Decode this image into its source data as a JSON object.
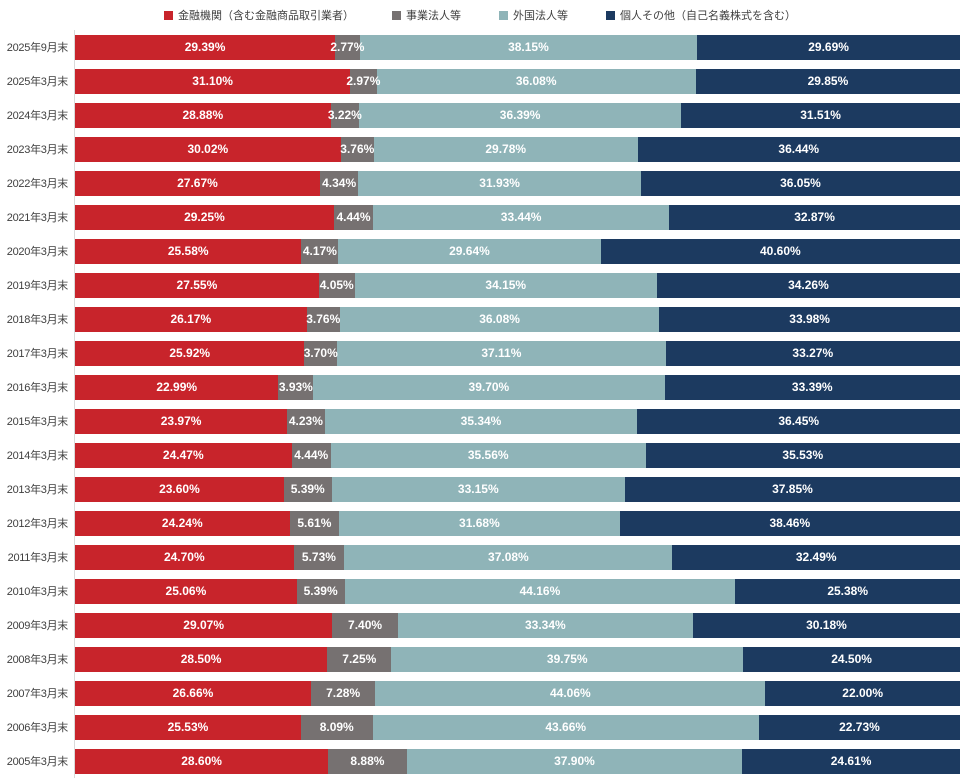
{
  "colors": {
    "financial": "#c8242b",
    "business": "#767171",
    "foreign": "#8fb4b8",
    "individual": "#1c3a60",
    "axis_line": "#d9d9d9",
    "category_text": "#404040",
    "value_text": "#ffffff",
    "background": "#ffffff"
  },
  "chart_data": {
    "type": "bar",
    "orientation": "horizontal",
    "stacked": true,
    "unit": "%",
    "xlim": [
      0,
      100
    ],
    "grid": false,
    "legend_position": "top",
    "value_label_format": "0.00%",
    "categories": [
      "2025年9月末",
      "2025年3月末",
      "2024年3月末",
      "2023年3月末",
      "2022年3月末",
      "2021年3月末",
      "2020年3月末",
      "2019年3月末",
      "2018年3月末",
      "2017年3月末",
      "2016年3月末",
      "2015年3月末",
      "2014年3月末",
      "2013年3月末",
      "2012年3月末",
      "2011年3月末",
      "2010年3月末",
      "2009年3月末",
      "2008年3月末",
      "2007年3月末",
      "2006年3月末",
      "2005年3月末"
    ],
    "series": [
      {
        "key": "financial-institutions",
        "name": "金融機関（含む金融商品取引業者）",
        "color": "#c8242b",
        "values": [
          29.39,
          31.1,
          28.88,
          30.02,
          27.67,
          29.25,
          25.58,
          27.55,
          26.17,
          25.92,
          22.99,
          23.97,
          24.47,
          23.6,
          24.24,
          24.7,
          25.06,
          29.07,
          28.5,
          26.66,
          25.53,
          28.6
        ]
      },
      {
        "key": "business-corporations",
        "name": "事業法人等",
        "color": "#767171",
        "values": [
          2.77,
          2.97,
          3.22,
          3.76,
          4.34,
          4.44,
          4.17,
          4.05,
          3.76,
          3.7,
          3.93,
          4.23,
          4.44,
          5.39,
          5.61,
          5.73,
          5.39,
          7.4,
          7.25,
          7.28,
          8.09,
          8.88
        ]
      },
      {
        "key": "foreign-corporations",
        "name": "外国法人等",
        "color": "#8fb4b8",
        "values": [
          38.15,
          36.08,
          36.39,
          29.78,
          31.93,
          33.44,
          29.64,
          34.15,
          36.08,
          37.11,
          39.7,
          35.34,
          35.56,
          33.15,
          31.68,
          37.08,
          44.16,
          33.34,
          39.75,
          44.06,
          43.66,
          37.9
        ]
      },
      {
        "key": "individuals-and-other",
        "name": "個人その他（自己名義株式を含む）",
        "color": "#1c3a60",
        "values": [
          29.69,
          29.85,
          31.51,
          36.44,
          36.05,
          32.87,
          40.6,
          34.26,
          33.98,
          33.27,
          33.39,
          36.45,
          35.53,
          37.85,
          38.46,
          32.49,
          25.38,
          30.18,
          24.5,
          22.0,
          22.73,
          24.61
        ]
      }
    ]
  }
}
